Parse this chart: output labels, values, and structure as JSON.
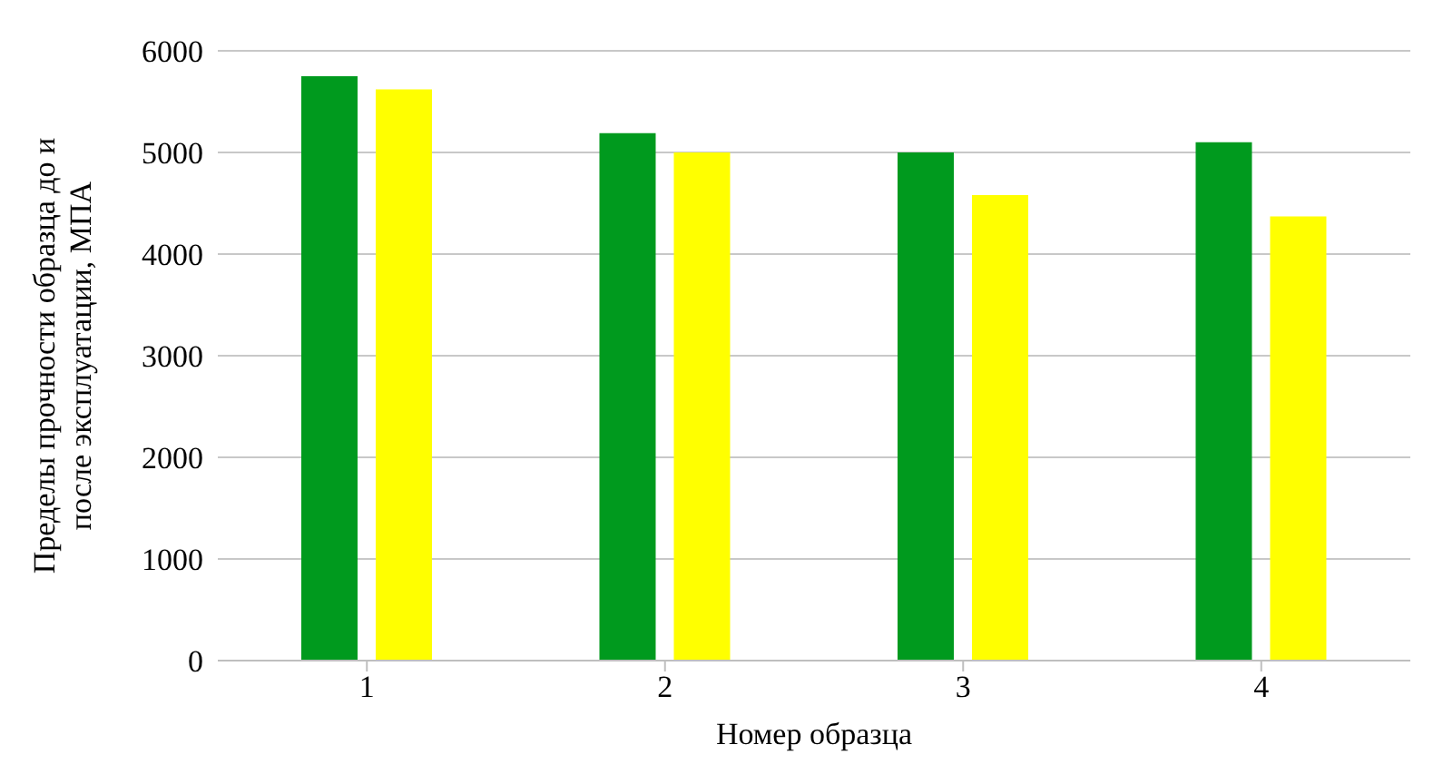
{
  "chart_data": {
    "type": "bar",
    "xlabel": "Номер образца",
    "ylabel": "Пределы прочности образца до и после эксплуатации, МПА",
    "categories": [
      "1",
      "2",
      "3",
      "4"
    ],
    "series": [
      {
        "color": "#009a1e",
        "values": [
          5750,
          5190,
          5000,
          5100
        ]
      },
      {
        "color": "#ffff00",
        "values": [
          5620,
          5000,
          4580,
          4370
        ]
      }
    ],
    "ylim": [
      0,
      6000
    ],
    "yticks": [
      0,
      1000,
      2000,
      3000,
      4000,
      5000,
      6000
    ],
    "grid": "y",
    "legend": false
  }
}
